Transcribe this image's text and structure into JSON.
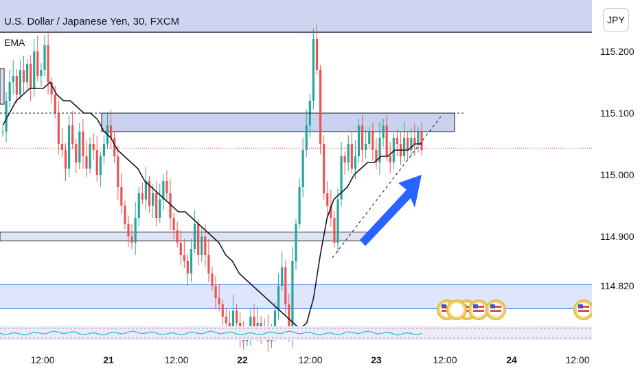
{
  "header": {
    "symbol_title": "U.S. Dollar / Japanese Yen, 30, FXCM",
    "indicator": "EMA",
    "currency_button": "JPY"
  },
  "colors": {
    "up": "#26a69a",
    "down": "#ef5350",
    "ema": "#131722",
    "zone_fill": "#c9d3ef",
    "blue_line": "#2962ff",
    "arrow": "#2962ff",
    "oscillator": "#26c6da"
  },
  "chart_data": {
    "type": "candlestick",
    "y_ticks": [
      "115.200",
      "115.100",
      "115.000",
      "114.900",
      "114.820"
    ],
    "x_ticks": [
      "12:00",
      "21",
      "12:00",
      "22",
      "12:00",
      "23",
      "12:00",
      "24",
      "12:00"
    ],
    "ylim": [
      114.75,
      115.25
    ],
    "price_path": [
      115.07,
      115.12,
      115.15,
      115.16,
      115.13,
      115.17,
      115.15,
      115.18,
      115.14,
      115.2,
      115.16,
      115.17,
      115.21,
      115.15,
      115.13,
      115.1,
      115.05,
      115.04,
      115.01,
      115.08,
      115.05,
      115.02,
      115.07,
      115.03,
      115.01,
      115.05,
      115.04,
      115.0,
      115.03,
      115.05,
      115.08,
      115.06,
      115.03,
      114.98,
      114.95,
      114.92,
      114.9,
      114.89,
      114.93,
      114.97,
      114.96,
      114.99,
      114.95,
      114.97,
      114.93,
      114.96,
      114.99,
      114.97,
      114.93,
      114.91,
      114.89,
      114.87,
      114.86,
      114.84,
      114.88,
      114.92,
      114.87,
      114.9,
      114.87,
      114.84,
      114.82,
      114.8,
      114.79,
      114.77,
      114.76,
      114.75,
      114.78,
      114.76,
      114.74,
      114.73,
      114.74,
      114.77,
      114.75,
      114.76,
      114.74,
      114.75,
      114.73,
      114.75,
      114.78,
      114.82,
      114.85,
      114.79,
      114.74,
      114.86,
      114.92,
      114.98,
      115.04,
      115.08,
      115.12,
      115.22,
      115.17,
      115.05,
      114.97,
      114.95,
      114.93,
      114.89,
      114.96,
      115.03,
      115.02,
      115.05,
      115.01,
      115.03,
      115.08,
      115.04,
      115.05,
      115.07,
      115.04,
      115.02,
      115.06,
      115.08,
      115.03,
      115.02,
      115.06,
      115.05,
      115.03,
      115.06,
      115.04,
      115.06,
      115.05,
      115.07,
      115.04
    ],
    "ema_path": [
      115.08,
      115.1,
      115.12,
      115.13,
      115.14,
      115.14,
      115.14,
      115.15,
      115.13,
      115.12,
      115.12,
      115.11,
      115.1,
      115.1,
      115.09,
      115.07,
      115.06,
      115.04,
      115.03,
      115.02,
      115.01,
      114.99,
      114.98,
      114.97,
      114.96,
      114.95,
      114.94,
      114.94,
      114.93,
      114.92,
      114.91,
      114.9,
      114.89,
      114.87,
      114.86,
      114.84,
      114.83,
      114.82,
      114.81,
      114.8,
      114.79,
      114.78,
      114.77,
      114.76,
      114.75,
      114.76,
      114.8,
      114.87,
      114.93,
      114.96,
      114.97,
      114.98,
      115.0,
      115.01,
      115.02,
      115.02,
      115.03,
      115.03,
      115.04,
      115.04,
      115.04,
      115.05,
      115.05
    ],
    "annotations": {
      "zones": [
        {
          "top": 115.1,
          "bottom": 115.07,
          "type": "resistance"
        },
        {
          "top": 114.905,
          "bottom": 114.895,
          "type": "support"
        },
        {
          "top": 114.82,
          "bottom": 114.785,
          "type": "support-blue"
        }
      ],
      "dotted_level": 115.1,
      "trendline": [
        [
          114.852,
          0.52
        ],
        [
          115.1,
          0.72
        ]
      ],
      "current_price_line": 115.043
    },
    "event_markers": 6
  }
}
